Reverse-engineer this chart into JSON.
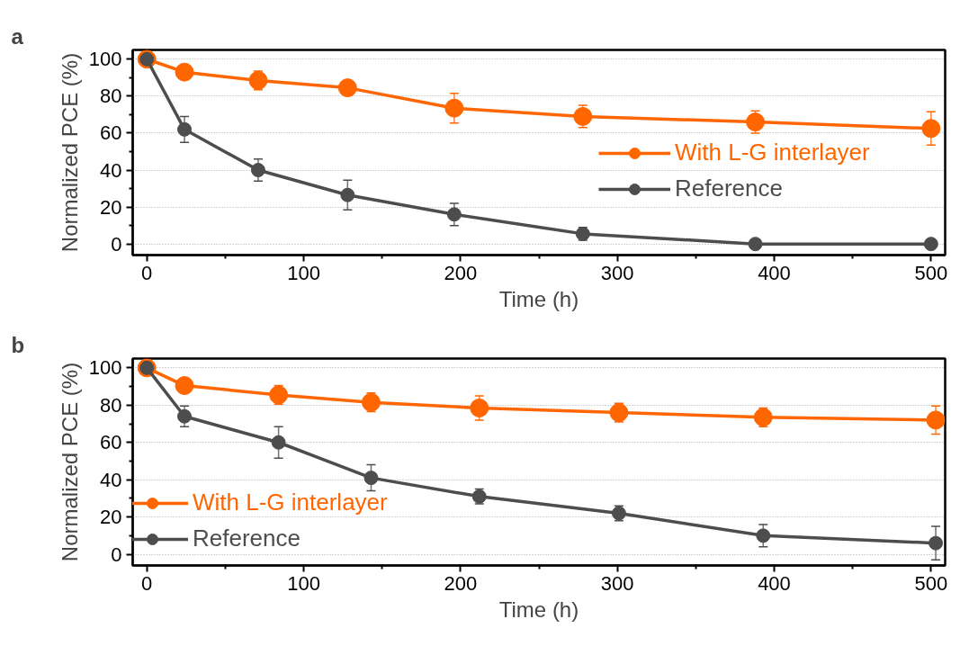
{
  "chart_data": [
    {
      "type": "line",
      "xlabel": "Time (h)",
      "ylabel": "Normalized PCE (%)",
      "annotations": [
        "a"
      ],
      "xlim": [
        -9,
        509
      ],
      "ylim": [
        -6,
        105
      ],
      "xticks": [
        0,
        {
          "value": 50,
          "label": null
        },
        100,
        {
          "value": 150,
          "label": null
        },
        200,
        {
          "value": 250,
          "label": null
        },
        300,
        {
          "value": 350,
          "label": null
        },
        400,
        {
          "value": 450,
          "label": null
        },
        500
      ],
      "yticks": [
        0,
        {
          "value": 10,
          "label": null
        },
        20,
        {
          "value": 30,
          "label": null
        },
        40,
        {
          "value": 50,
          "label": null
        },
        60,
        {
          "value": 70,
          "label": null
        },
        80,
        {
          "value": 90,
          "label": null
        },
        100
      ],
      "grid": "y",
      "legend": "right",
      "marker": "circle",
      "line_style": "solid",
      "series": [
        {
          "name": "With L-G interlayer",
          "color": "#ff6600",
          "x": [
            0,
            24,
            71,
            128,
            196,
            278,
            388,
            500
          ],
          "values": [
            100,
            93,
            88.5,
            84.5,
            73.5,
            69,
            66,
            62.5
          ],
          "errors": [
            null,
            3,
            5,
            4,
            8,
            6,
            6,
            9
          ]
        },
        {
          "name": "Reference",
          "color": "#4d4d4d",
          "x": [
            0,
            24,
            71,
            128,
            196,
            278,
            388,
            500
          ],
          "values": [
            100,
            62,
            40,
            26.5,
            16,
            5.5,
            0,
            0
          ],
          "errors": [
            null,
            7,
            6,
            8,
            6,
            3.5,
            null,
            null
          ]
        }
      ]
    },
    {
      "type": "line",
      "xlabel": "Time (h)",
      "ylabel": "Normalized PCE (%)",
      "annotations": [
        "b"
      ],
      "xlim": [
        -9,
        509
      ],
      "ylim": [
        -6,
        105
      ],
      "xticks": [
        0,
        {
          "value": 50,
          "label": null
        },
        100,
        {
          "value": 150,
          "label": null
        },
        200,
        {
          "value": 250,
          "label": null
        },
        300,
        {
          "value": 350,
          "label": null
        },
        400,
        {
          "value": 450,
          "label": null
        },
        500
      ],
      "yticks": [
        0,
        {
          "value": 10,
          "label": null
        },
        20,
        {
          "value": 30,
          "label": null
        },
        40,
        {
          "value": 50,
          "label": null
        },
        60,
        {
          "value": 70,
          "label": null
        },
        80,
        {
          "value": 90,
          "label": null
        },
        100
      ],
      "grid": "y",
      "legend": "bottom left",
      "marker": "circle",
      "line_style": "solid",
      "series": [
        {
          "name": "With L-G interlayer",
          "color": "#ff6600",
          "x": [
            0,
            24,
            84,
            143,
            212,
            301,
            393,
            503
          ],
          "values": [
            100,
            90.5,
            85.5,
            81.5,
            78.5,
            76,
            73.5,
            72
          ],
          "errors": [
            null,
            3.5,
            5,
            5,
            6.5,
            5,
            5,
            7.5
          ]
        },
        {
          "name": "Reference",
          "color": "#4d4d4d",
          "x": [
            0,
            24,
            84,
            143,
            212,
            301,
            393,
            503
          ],
          "values": [
            100,
            74,
            60,
            41,
            31,
            22,
            10,
            6
          ],
          "errors": [
            null,
            5.5,
            8.5,
            7,
            4,
            4,
            6,
            9
          ]
        }
      ]
    }
  ]
}
